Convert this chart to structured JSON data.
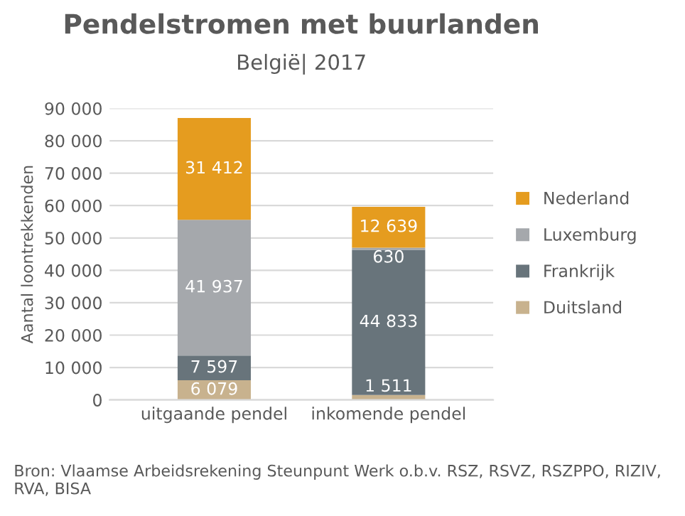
{
  "chart_data": {
    "type": "bar",
    "stacked": true,
    "title": "Pendelstromen met buurlanden",
    "subtitle": "België| 2017",
    "ylabel": "Aantal loontrekkenden",
    "categories": [
      "uitgaande pendel",
      "inkomende pendel"
    ],
    "series": [
      {
        "name": "Duitsland",
        "color": "#c8b28e",
        "values": [
          6079,
          1511
        ],
        "value_labels": [
          "6 079",
          "1 511"
        ]
      },
      {
        "name": "Frankrijk",
        "color": "#68747b",
        "values": [
          7597,
          44833
        ],
        "value_labels": [
          "7 597",
          "44 833"
        ]
      },
      {
        "name": "Luxemburg",
        "color": "#a5a8ac",
        "values": [
          41937,
          630
        ],
        "value_labels": [
          "41 937",
          "630"
        ]
      },
      {
        "name": "Nederland",
        "color": "#e59c1f",
        "values": [
          31412,
          12639
        ],
        "value_labels": [
          "31 412",
          "12 639"
        ]
      }
    ],
    "ylim": [
      0,
      90000
    ],
    "yticks": [
      {
        "value": 0,
        "label": "0"
      },
      {
        "value": 10000,
        "label": "10 000"
      },
      {
        "value": 20000,
        "label": "20 000"
      },
      {
        "value": 30000,
        "label": "30 000"
      },
      {
        "value": 40000,
        "label": "40 000"
      },
      {
        "value": 50000,
        "label": "50 000"
      },
      {
        "value": 60000,
        "label": "60 000"
      },
      {
        "value": 70000,
        "label": "70 000"
      },
      {
        "value": 80000,
        "label": "80 000"
      },
      {
        "value": 90000,
        "label": "90 000"
      }
    ],
    "grid": "y",
    "legend": "right",
    "annotations": [
      "Bron: Vlaamse Arbeidsrekening Steunpunt Werk o.b.v. RSZ, RSVZ, RSZPPO, RIZIV, RVA, BISA"
    ]
  }
}
